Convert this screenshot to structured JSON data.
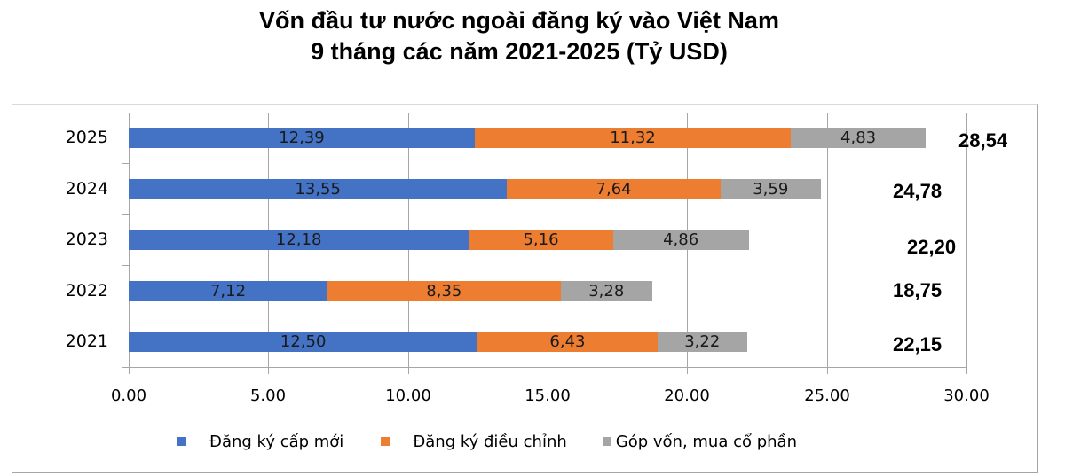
{
  "title": {
    "line1": "Vốn đầu tư nước ngoài đăng ký vào Việt Nam",
    "line2": "9 tháng các năm 2021-2025 (Tỷ USD)"
  },
  "colors": {
    "new": "#4472c4",
    "adjusted": "#ed7d31",
    "shares": "#a5a5a5"
  },
  "legend": [
    {
      "label": "Đăng ký cấp mới",
      "color": "#4472c4"
    },
    {
      "label": "Đăng ký điều chỉnh",
      "color": "#ed7d31"
    },
    {
      "label": "Góp vốn, mua cổ phần",
      "color": "#a5a5a5"
    }
  ],
  "x_ticks": [
    "0.00",
    "5.00",
    "10.00",
    "15.00",
    "20.00",
    "25.00",
    "30.00"
  ],
  "rows": [
    {
      "year": "2025",
      "new": "12,39",
      "adjusted": "11,32",
      "shares": "4,83",
      "total": "28,54"
    },
    {
      "year": "2024",
      "new": "13,55",
      "adjusted": "7,64",
      "shares": "3,59",
      "total": "24,78"
    },
    {
      "year": "2023",
      "new": "12,18",
      "adjusted": "5,16",
      "shares": "4,86",
      "total": "22,20"
    },
    {
      "year": "2022",
      "new": "7,12",
      "adjusted": "8,35",
      "shares": "3,28",
      "total": "18,75"
    },
    {
      "year": "2021",
      "new": "12,50",
      "adjusted": "6,43",
      "shares": "3,22",
      "total": "22,15"
    }
  ],
  "chart_data": {
    "type": "bar",
    "orientation": "horizontal",
    "stacked": true,
    "title": "Vốn đầu tư nước ngoài đăng ký vào Việt Nam 9 tháng các năm 2021-2025 (Tỷ USD)",
    "xlabel": "",
    "ylabel": "",
    "categories": [
      "2025",
      "2024",
      "2023",
      "2022",
      "2021"
    ],
    "series": [
      {
        "name": "Đăng ký cấp mới",
        "color": "#4472c4",
        "values": [
          12.39,
          13.55,
          12.18,
          7.12,
          12.5
        ]
      },
      {
        "name": "Đăng ký điều chỉnh",
        "color": "#ed7d31",
        "values": [
          11.32,
          7.64,
          5.16,
          8.35,
          6.43
        ]
      },
      {
        "name": "Góp vốn, mua cổ phần",
        "color": "#a5a5a5",
        "values": [
          4.83,
          3.59,
          4.86,
          3.28,
          3.22
        ]
      }
    ],
    "totals": [
      28.54,
      24.78,
      22.2,
      18.75,
      22.15
    ],
    "xlim": [
      0,
      30
    ],
    "x_ticks": [
      0,
      5,
      10,
      15,
      20,
      25,
      30
    ],
    "grid": "vertical",
    "legend_position": "bottom",
    "data_labels": true
  }
}
